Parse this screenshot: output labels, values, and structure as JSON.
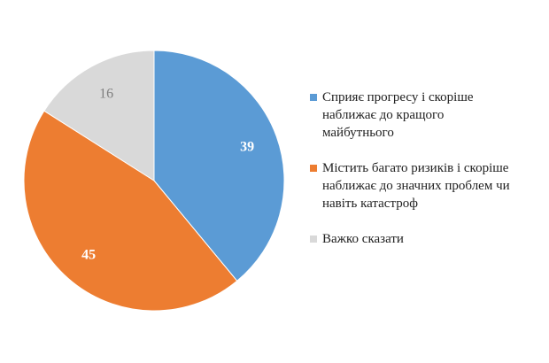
{
  "chart_data": {
    "type": "pie",
    "slices": [
      {
        "label": "Сприяє прогресу і скоріше\nнаближає до кращого\nмайбутнього",
        "value": 39,
        "value_label": "39",
        "color": "#5B9BD5",
        "label_color": "#ffffff",
        "label_weight": "bold"
      },
      {
        "label": "Містить багато ризиків і скоріше\nнаближає до значних проблем чи\nнавіть катастроф",
        "value": 45,
        "value_label": "45",
        "color": "#ED7D31",
        "label_color": "#ffffff",
        "label_weight": "bold"
      },
      {
        "label": "Важко сказати",
        "value": 16,
        "value_label": "16",
        "color": "#D9D9D9",
        "label_color": "#7f7f7f",
        "label_weight": "normal"
      }
    ],
    "start": "12 o'clock",
    "direction": "clockwise",
    "legend_position": "right"
  }
}
